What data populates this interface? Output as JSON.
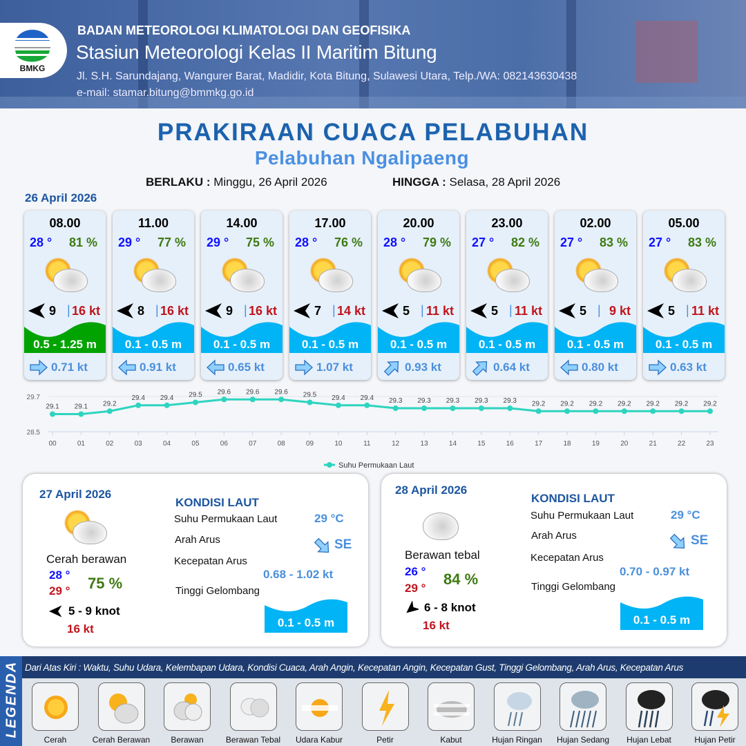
{
  "header": {
    "org": "BADAN METEOROLOGI KLIMATOLOGI DAN GEOFISIKA",
    "station": "Stasiun Meteorologi Kelas II Maritim Bitung",
    "address": "Jl. S.H. Sarundajang, Wangurer Barat, Madidir, Kota Bitung, Sulawesi Utara, Telp./WA: 082143630438",
    "email": "e-mail: stamar.bitung@bmmkg.go.id",
    "logo_text": "BMKG"
  },
  "title": "PRAKIRAAN CUACA PELABUHAN",
  "subtitle": "Pelabuhan Ngalipaeng",
  "validity": {
    "from_label": "BERLAKU :",
    "from_value": "Minggu, 26 April 2026",
    "to_label": "HINGGA :",
    "to_value": "Selasa, 28 April 2026"
  },
  "day1_date": "26 April 2026",
  "colors": {
    "wave_normal": "#00b4f5",
    "wave_moderate": "#00a300",
    "temp": "#1010ff",
    "humidity": "#3e7a12",
    "gust": "#c0141c",
    "current": "#4a8fdc"
  },
  "forecasts": [
    {
      "time": "08.00",
      "temp": "28 °",
      "humidity": "81 %",
      "weather_icon": "cerah-berawan",
      "wind_dir": "E",
      "wind_speed": "9",
      "gust": "16 kt",
      "wave": "0.5 - 1.25 m",
      "wave_level": "moderate",
      "current_dir": "right",
      "current_speed": "0.71 kt"
    },
    {
      "time": "11.00",
      "temp": "29 °",
      "humidity": "77 %",
      "weather_icon": "cerah-berawan",
      "wind_dir": "E",
      "wind_speed": "8",
      "gust": "16 kt",
      "wave": "0.1 - 0.5 m",
      "wave_level": "normal",
      "current_dir": "left",
      "current_speed": "0.91 kt"
    },
    {
      "time": "14.00",
      "temp": "29 °",
      "humidity": "75 %",
      "weather_icon": "cerah-berawan",
      "wind_dir": "E",
      "wind_speed": "9",
      "gust": "16 kt",
      "wave": "0.1 - 0.5 m",
      "wave_level": "normal",
      "current_dir": "left",
      "current_speed": "0.65 kt"
    },
    {
      "time": "17.00",
      "temp": "28 °",
      "humidity": "76 %",
      "weather_icon": "cerah-berawan",
      "wind_dir": "E",
      "wind_speed": "7",
      "gust": "14 kt",
      "wave": "0.1 - 0.5 m",
      "wave_level": "normal",
      "current_dir": "right",
      "current_speed": "1.07 kt"
    },
    {
      "time": "20.00",
      "temp": "28 °",
      "humidity": "79 %",
      "weather_icon": "cerah-berawan",
      "wind_dir": "E",
      "wind_speed": "5",
      "gust": "11 kt",
      "wave": "0.1 - 0.5 m",
      "wave_level": "normal",
      "current_dir": "up-right",
      "current_speed": "0.93 kt"
    },
    {
      "time": "23.00",
      "temp": "27 °",
      "humidity": "82 %",
      "weather_icon": "cerah-berawan",
      "wind_dir": "E",
      "wind_speed": "5",
      "gust": "11 kt",
      "wave": "0.1 - 0.5 m",
      "wave_level": "normal",
      "current_dir": "up-right",
      "current_speed": "0.64 kt"
    },
    {
      "time": "02.00",
      "temp": "27 °",
      "humidity": "83 %",
      "weather_icon": "cerah-berawan",
      "wind_dir": "E",
      "wind_speed": "5",
      "gust": "9 kt",
      "wave": "0.1 - 0.5 m",
      "wave_level": "normal",
      "current_dir": "left",
      "current_speed": "0.80 kt"
    },
    {
      "time": "05.00",
      "temp": "27 °",
      "humidity": "83 %",
      "weather_icon": "cerah-berawan",
      "wind_dir": "E",
      "wind_speed": "5",
      "gust": "11 kt",
      "wave": "0.1 - 0.5 m",
      "wave_level": "normal",
      "current_dir": "right",
      "current_speed": "0.63 kt"
    }
  ],
  "chart_data": {
    "type": "line",
    "categories": [
      "00",
      "01",
      "02",
      "03",
      "04",
      "05",
      "06",
      "07",
      "08",
      "09",
      "10",
      "11",
      "12",
      "13",
      "14",
      "15",
      "16",
      "17",
      "18",
      "19",
      "20",
      "21",
      "22",
      "23"
    ],
    "series": [
      {
        "name": "Suhu Permukaan Laut",
        "values": [
          29.1,
          29.1,
          29.2,
          29.4,
          29.4,
          29.5,
          29.6,
          29.6,
          29.6,
          29.5,
          29.4,
          29.4,
          29.3,
          29.3,
          29.3,
          29.3,
          29.3,
          29.2,
          29.2,
          29.2,
          29.2,
          29.2,
          29.2,
          29.2
        ],
        "color": "#2dd4bf"
      }
    ],
    "yticks": [
      "28.5",
      "29.7"
    ],
    "ylim": [
      28.5,
      29.7
    ],
    "grid": true,
    "legend": "bottom"
  },
  "days": [
    {
      "date": "27 April 2026",
      "weather_icon": "cerah-berawan",
      "condition": "Cerah berawan",
      "temp_min": "28 °",
      "temp_max": "29 °",
      "humidity": "75 %",
      "wind_dir": "E",
      "wind": "5  - 9 knot",
      "gust": "16 kt",
      "sea": {
        "title": "KONDISI LAUT",
        "sst_label": "Suhu Permukaan Laut",
        "sst": "29 °C",
        "dir_label": "Arah Arus",
        "dir": "SE",
        "speed_label": "Kecepatan Arus",
        "speed": "0.68 - 1.02 kt",
        "wave_label": "Tinggi Gelombang",
        "wave": "0.1 - 0.5 m"
      }
    },
    {
      "date": "28 April 2026",
      "weather_icon": "berawan-tebal",
      "condition": "Berawan tebal",
      "temp_min": "26 °",
      "temp_max": "29 °",
      "humidity": "84 %",
      "wind_dir": "NE",
      "wind": "6  - 8 knot",
      "gust": "16 kt",
      "sea": {
        "title": "KONDISI LAUT",
        "sst_label": "Suhu Permukaan Laut",
        "sst": "29 °C",
        "dir_label": "Arah Arus",
        "dir": "SE",
        "speed_label": "Kecepatan Arus",
        "speed": "0.70 - 0.97 kt",
        "wave_label": "Tinggi Gelombang",
        "wave": "0.1 - 0.5 m"
      }
    }
  ],
  "legend": {
    "title": "LEGENDA",
    "description": "Dari Atas Kiri : Waktu, Suhu Udara, Kelembapan Udara, Kondisi Cuaca, Arah Angin, Kecepatan Angin, Kecepatan Gust, Tinggi Gelombang, Arah Arus, Kecepatan Arus",
    "items": [
      {
        "label": "Cerah",
        "icon": "sun"
      },
      {
        "label": "Cerah Berawan",
        "icon": "sun-cloud"
      },
      {
        "label": "Berawan",
        "icon": "cloudy"
      },
      {
        "label": "Berawan Tebal",
        "icon": "overcast"
      },
      {
        "label": "Udara Kabur",
        "icon": "haze"
      },
      {
        "label": "Petir",
        "icon": "lightning"
      },
      {
        "label": "Kabut",
        "icon": "fog"
      },
      {
        "label": "Hujan Ringan",
        "icon": "light-rain"
      },
      {
        "label": "Hujan Sedang",
        "icon": "moderate-rain"
      },
      {
        "label": "Hujan Lebat",
        "icon": "heavy-rain"
      },
      {
        "label": "Hujan Petir",
        "icon": "thunderstorm"
      }
    ]
  }
}
